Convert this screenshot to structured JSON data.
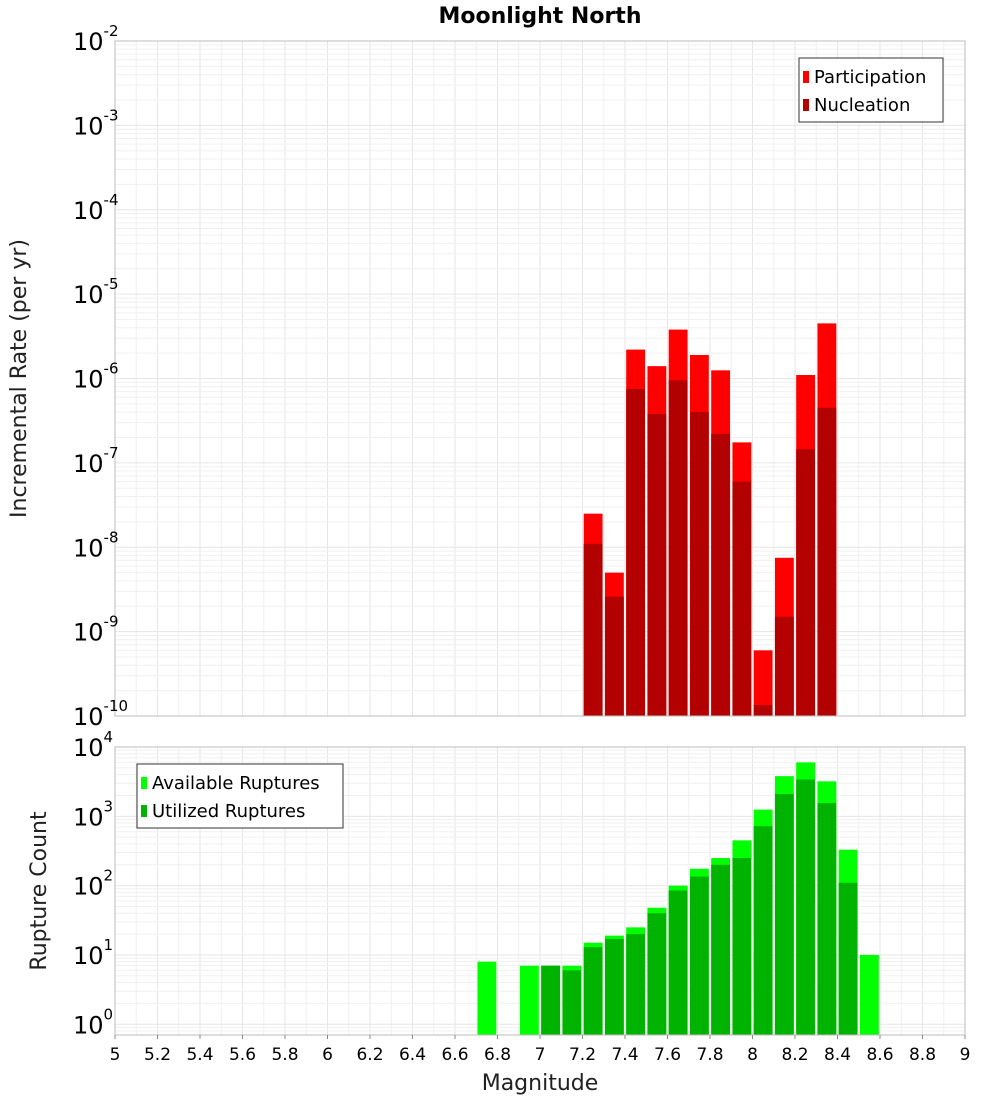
{
  "chart_data": [
    {
      "type": "bar",
      "title": "Moonlight North",
      "xlabel": "",
      "ylabel": "Incremental Rate (per yr)",
      "y_scale": "log",
      "ylim": [
        1e-10,
        0.01
      ],
      "xlim": [
        5,
        9
      ],
      "y_tick_base": "10",
      "y_tick_exponents": [
        "-10",
        "-9",
        "-8",
        "-7",
        "-6",
        "-5",
        "-4",
        "-3",
        "-2"
      ],
      "bar_width": 0.1,
      "grid": true,
      "legend_position": "top-right",
      "series": [
        {
          "name": "Participation",
          "color": "#ff0000",
          "x": [
            7.25,
            7.35,
            7.45,
            7.55,
            7.65,
            7.75,
            7.85,
            7.95,
            8.05,
            8.15,
            8.25,
            8.35
          ],
          "values": [
            2.5e-08,
            5e-09,
            2.2e-06,
            1.4e-06,
            3.8e-06,
            1.9e-06,
            1.25e-06,
            1.75e-07,
            6e-10,
            7.5e-09,
            1.1e-06,
            4.5e-06
          ]
        },
        {
          "name": "Nucleation",
          "color": "#b30000",
          "x": [
            7.25,
            7.35,
            7.45,
            7.55,
            7.65,
            7.75,
            7.85,
            7.95,
            8.05,
            8.15,
            8.25,
            8.35
          ],
          "values": [
            1.1e-08,
            2.6e-09,
            7.5e-07,
            3.8e-07,
            9.5e-07,
            4e-07,
            2.2e-07,
            6e-08,
            1.35e-10,
            1.5e-09,
            1.45e-07,
            4.5e-07
          ]
        }
      ]
    },
    {
      "type": "bar",
      "title": "",
      "xlabel": "Magnitude",
      "ylabel": "Rupture Count",
      "y_scale": "log",
      "ylim": [
        0.7,
        10000
      ],
      "xlim": [
        5,
        9
      ],
      "x_ticks": [
        "5",
        "5.2",
        "5.4",
        "5.6",
        "5.8",
        "6",
        "6.2",
        "6.4",
        "6.6",
        "6.8",
        "7",
        "7.2",
        "7.4",
        "7.6",
        "7.8",
        "8",
        "8.2",
        "8.4",
        "8.6",
        "8.8",
        "9"
      ],
      "y_tick_base": "10",
      "y_tick_exponents": [
        "0",
        "1",
        "2",
        "3",
        "4"
      ],
      "bar_width": 0.1,
      "grid": true,
      "legend_position": "top-left",
      "series": [
        {
          "name": "Available Ruptures",
          "color": "#00ff00",
          "x": [
            6.75,
            6.95,
            7.05,
            7.15,
            7.25,
            7.35,
            7.45,
            7.55,
            7.65,
            7.75,
            7.85,
            7.95,
            8.05,
            8.15,
            8.25,
            8.35,
            8.45,
            8.55
          ],
          "values": [
            8,
            7,
            7,
            7,
            15,
            19,
            25,
            48,
            100,
            175,
            250,
            450,
            1250,
            3800,
            6000,
            3200,
            330,
            10
          ]
        },
        {
          "name": "Utilized Ruptures",
          "color": "#00b300",
          "x": [
            7.05,
            7.15,
            7.25,
            7.35,
            7.45,
            7.55,
            7.65,
            7.75,
            7.85,
            7.95,
            8.05,
            8.15,
            8.25,
            8.35,
            8.45
          ],
          "values": [
            7,
            6,
            13,
            17,
            20,
            40,
            85,
            135,
            200,
            250,
            720,
            2100,
            3400,
            1550,
            110
          ]
        }
      ]
    }
  ]
}
